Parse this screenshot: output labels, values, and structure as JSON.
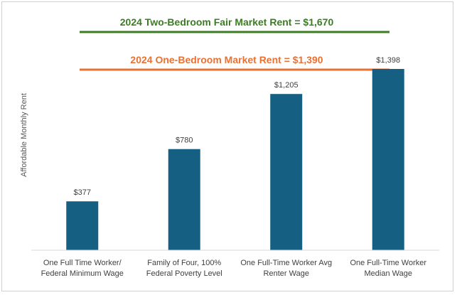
{
  "chart_data": {
    "type": "bar",
    "ylabel": "Affordable Monthly Rent",
    "xlabel": "",
    "ylim": [
      0,
      1700
    ],
    "grid": false,
    "categories": [
      [
        "One Full Time Worker/",
        "Federal Minimum Wage"
      ],
      [
        "Family of Four, 100%",
        "Federal Poverty Level"
      ],
      [
        "One Full-Time Worker Avg",
        "Renter Wage"
      ],
      [
        "One Full-Time Worker",
        "Median Wage"
      ]
    ],
    "values": [
      377,
      780,
      1205,
      1398
    ],
    "data_labels": [
      "$377",
      "$780",
      "$1,205",
      "$1,398"
    ],
    "bar_color": "#156082",
    "reference_lines": [
      {
        "value": 1670,
        "label": "2024 Two-Bedroom Fair Market Rent = $1,670",
        "color": "#3b7d23"
      },
      {
        "value": 1390,
        "label": "2024 One-Bedroom Market Rent = $1,390",
        "color": "#e97132"
      }
    ]
  }
}
